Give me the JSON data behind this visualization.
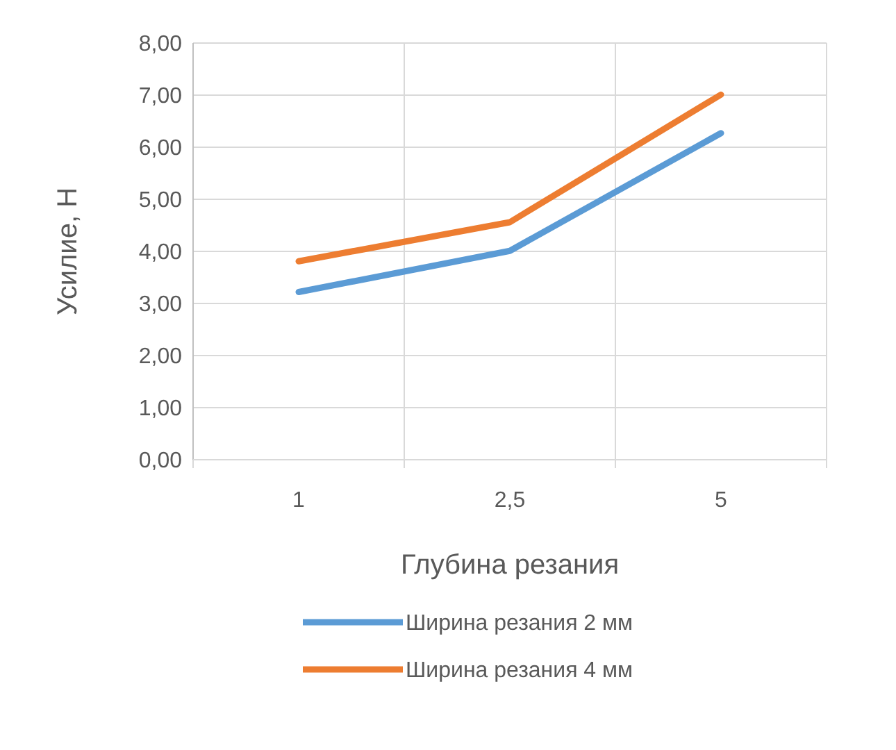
{
  "chart_data": {
    "type": "line",
    "xlabel": "Глубина резания",
    "ylabel": "Усилие, Н",
    "categories": [
      "1",
      "2,5",
      "5"
    ],
    "series": [
      {
        "name": "Ширина резания 2 мм",
        "color": "#5b9bd5",
        "values": [
          3.22,
          4.01,
          6.27
        ]
      },
      {
        "name": "Ширина резания 4 мм",
        "color": "#ed7d31",
        "values": [
          3.81,
          4.56,
          7.01
        ]
      }
    ],
    "ylim": [
      0,
      8
    ],
    "yticks": [
      {
        "value": 0,
        "label": "0,00"
      },
      {
        "value": 1,
        "label": "1,00"
      },
      {
        "value": 2,
        "label": "2,00"
      },
      {
        "value": 3,
        "label": "3,00"
      },
      {
        "value": 4,
        "label": "4,00"
      },
      {
        "value": 5,
        "label": "5,00"
      },
      {
        "value": 6,
        "label": "6,00"
      },
      {
        "value": 7,
        "label": "7,00"
      },
      {
        "value": 8,
        "label": "8,00"
      }
    ],
    "grid": true,
    "legend": "bottom",
    "marker": "none",
    "line_style": "solid"
  }
}
